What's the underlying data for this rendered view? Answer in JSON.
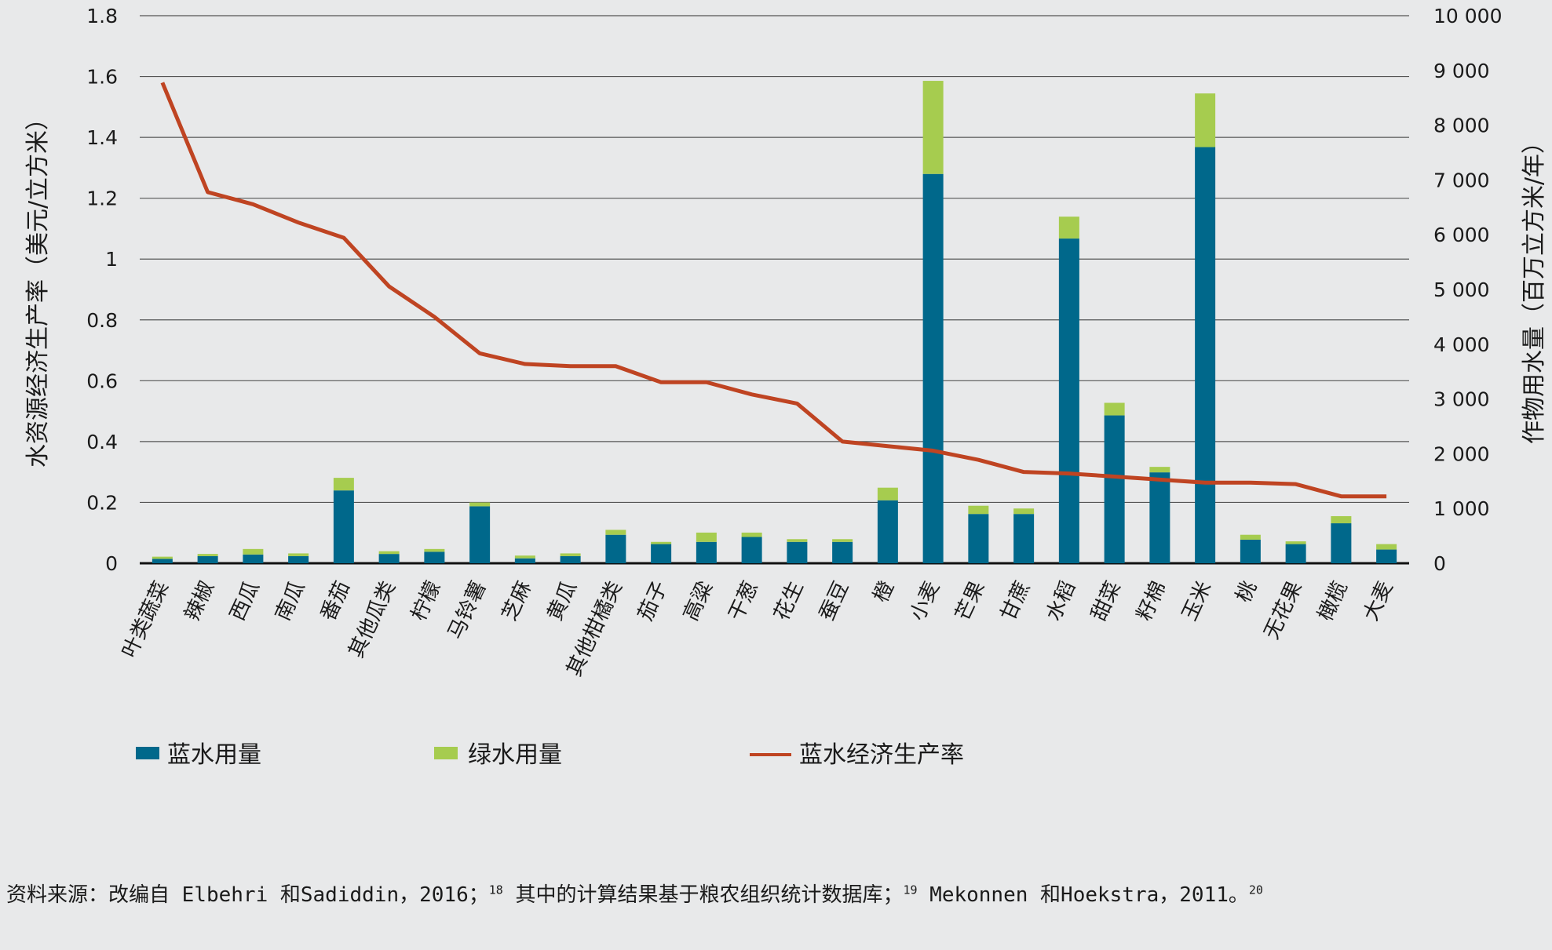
{
  "chart_data": {
    "type": "bar",
    "left_axis_title": "水资源经济生产率（美元/立方米）",
    "right_axis_title": "作物用水量（百万立方米/年）",
    "left_ticks": [
      "0",
      "0.2",
      "0.4",
      "0.6",
      "0.8",
      "1",
      "1.2",
      "1.4",
      "1.6",
      "1.8"
    ],
    "right_ticks": [
      "0",
      "1 000",
      "2 000",
      "3 000",
      "4 000",
      "5 000",
      "6 000",
      "7 000",
      "8 000",
      "9 000",
      "10 000"
    ],
    "ylim_left": [
      0,
      1.8
    ],
    "ylim_right": [
      0,
      10000
    ],
    "categories": [
      "叶类蔬菜",
      "辣椒",
      "西瓜",
      "南瓜",
      "番茄",
      "其他瓜类",
      "柠檬",
      "马铃薯",
      "芝麻",
      "黄瓜",
      "其他柑橘类",
      "茄子",
      "高粱",
      "干葱",
      "花生",
      "蚕豆",
      "橙",
      "小麦",
      "芒果",
      "甘蔗",
      "水稻",
      "甜菜",
      "籽棉",
      "玉米",
      "桃",
      "无花果",
      "橄榄",
      "大麦"
    ],
    "series": [
      {
        "name": "蓝水用量",
        "type": "bar",
        "axis": "right",
        "color": "#00688b",
        "values": [
          80,
          130,
          160,
          130,
          1330,
          170,
          210,
          1040,
          90,
          130,
          520,
          350,
          390,
          480,
          390,
          390,
          1150,
          7110,
          900,
          900,
          5930,
          2700,
          1660,
          7600,
          430,
          350,
          730,
          250
        ]
      },
      {
        "name": "绿水用量",
        "type": "bar",
        "axis": "right",
        "color": "#a6cc4f",
        "values": [
          40,
          40,
          100,
          50,
          230,
          50,
          50,
          70,
          50,
          50,
          90,
          40,
          170,
          80,
          50,
          50,
          230,
          1700,
          150,
          100,
          400,
          230,
          100,
          980,
          90,
          50,
          130,
          100
        ]
      },
      {
        "name": "蓝水经济生产率",
        "type": "line",
        "axis": "left",
        "color": "#bf4422",
        "values": [
          1.58,
          1.22,
          1.18,
          1.12,
          1.07,
          0.91,
          0.81,
          0.69,
          0.655,
          0.648,
          0.648,
          0.595,
          0.595,
          0.555,
          0.525,
          0.4,
          0.385,
          0.37,
          0.34,
          0.3,
          0.295,
          0.285,
          0.275,
          0.265,
          0.265,
          0.26,
          0.22,
          0.22
        ]
      }
    ],
    "legend": [
      "蓝水用量",
      "绿水用量",
      "蓝水经济生产率"
    ],
    "grid": true
  },
  "source": {
    "before_sup1": "资料来源：改编自 Elbehri 和Sadiddin，2016；",
    "sup1": "18",
    "mid1": " 其中的计算结果基于粮农组织统计数据库；",
    "sup2": "19",
    "mid2": " Mekonnen 和Hoekstra，2011。",
    "sup3": "20"
  }
}
